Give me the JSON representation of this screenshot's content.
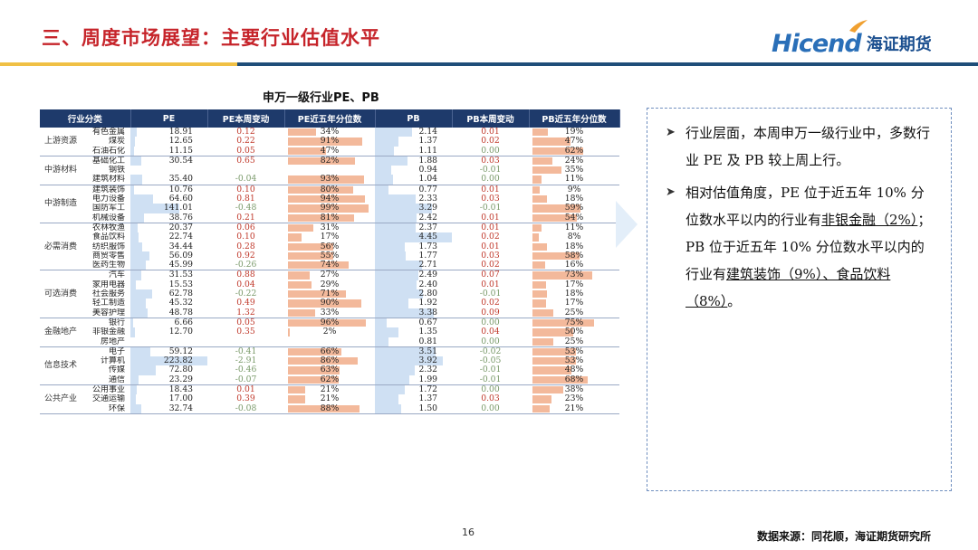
{
  "header": {
    "title": "三、周度市场展望：主要行业估值水平",
    "logo_en": "Hicend",
    "logo_zh": "海证期货"
  },
  "table": {
    "title": "申万一级行业PE、PB",
    "columns": [
      "行业分类",
      "",
      "PE",
      "PE本周变动",
      "PE近五年分位数",
      "PB",
      "PB本周变动",
      "PB近五年分位数"
    ],
    "groups": [
      {
        "name": "上游资源",
        "rows": [
          {
            "industry": "有色金属",
            "pe": "18.91",
            "pe_chg": "0.12",
            "pe_pct": "34%",
            "pb": "2.14",
            "pb_chg": "0.01",
            "pb_pct": "19%"
          },
          {
            "industry": "煤炭",
            "pe": "12.65",
            "pe_chg": "0.22",
            "pe_pct": "91%",
            "pb": "1.37",
            "pb_chg": "0.02",
            "pb_pct": "47%"
          },
          {
            "industry": "石油石化",
            "pe": "11.15",
            "pe_chg": "0.05",
            "pe_pct": "47%",
            "pb": "1.11",
            "pb_chg": "0.00",
            "pb_pct": "62%"
          }
        ]
      },
      {
        "name": "中游材料",
        "rows": [
          {
            "industry": "基础化工",
            "pe": "30.54",
            "pe_chg": "0.65",
            "pe_pct": "82%",
            "pb": "1.88",
            "pb_chg": "0.03",
            "pb_pct": "24%"
          },
          {
            "industry": "钢铁",
            "pe": "",
            "pe_chg": "",
            "pe_pct": "",
            "pb": "0.94",
            "pb_chg": "-0.01",
            "pb_pct": "35%"
          },
          {
            "industry": "建筑材料",
            "pe": "35.40",
            "pe_chg": "-0.04",
            "pe_pct": "93%",
            "pb": "1.04",
            "pb_chg": "0.00",
            "pb_pct": "11%"
          }
        ]
      },
      {
        "name": "中游制造",
        "rows": [
          {
            "industry": "建筑装饰",
            "pe": "10.76",
            "pe_chg": "0.10",
            "pe_pct": "80%",
            "pb": "0.77",
            "pb_chg": "0.01",
            "pb_pct": "9%"
          },
          {
            "industry": "电力设备",
            "pe": "64.60",
            "pe_chg": "0.81",
            "pe_pct": "94%",
            "pb": "2.33",
            "pb_chg": "0.03",
            "pb_pct": "18%"
          },
          {
            "industry": "国防军工",
            "pe": "141.01",
            "pe_chg": "-0.48",
            "pe_pct": "99%",
            "pb": "3.29",
            "pb_chg": "-0.01",
            "pb_pct": "59%"
          },
          {
            "industry": "机械设备",
            "pe": "38.76",
            "pe_chg": "0.21",
            "pe_pct": "81%",
            "pb": "2.42",
            "pb_chg": "0.01",
            "pb_pct": "54%"
          }
        ]
      },
      {
        "name": "必需消费",
        "rows": [
          {
            "industry": "农林牧渔",
            "pe": "20.37",
            "pe_chg": "0.06",
            "pe_pct": "31%",
            "pb": "2.37",
            "pb_chg": "0.01",
            "pb_pct": "11%"
          },
          {
            "industry": "食品饮料",
            "pe": "22.74",
            "pe_chg": "0.10",
            "pe_pct": "17%",
            "pb": "4.45",
            "pb_chg": "0.02",
            "pb_pct": "8%"
          },
          {
            "industry": "纺织服饰",
            "pe": "34.44",
            "pe_chg": "0.28",
            "pe_pct": "56%",
            "pb": "1.73",
            "pb_chg": "0.01",
            "pb_pct": "18%"
          },
          {
            "industry": "商贸零售",
            "pe": "56.09",
            "pe_chg": "0.92",
            "pe_pct": "55%",
            "pb": "1.77",
            "pb_chg": "0.03",
            "pb_pct": "58%"
          },
          {
            "industry": "医药生物",
            "pe": "45.99",
            "pe_chg": "-0.26",
            "pe_pct": "74%",
            "pb": "2.71",
            "pb_chg": "0.02",
            "pb_pct": "16%"
          }
        ]
      },
      {
        "name": "可选消费",
        "rows": [
          {
            "industry": "汽车",
            "pe": "31.53",
            "pe_chg": "0.88",
            "pe_pct": "27%",
            "pb": "2.49",
            "pb_chg": "0.07",
            "pb_pct": "73%"
          },
          {
            "industry": "家用电器",
            "pe": "15.53",
            "pe_chg": "0.04",
            "pe_pct": "29%",
            "pb": "2.40",
            "pb_chg": "0.01",
            "pb_pct": "17%"
          },
          {
            "industry": "社会服务",
            "pe": "62.78",
            "pe_chg": "-0.22",
            "pe_pct": "71%",
            "pb": "2.80",
            "pb_chg": "-0.01",
            "pb_pct": "18%"
          },
          {
            "industry": "轻工制造",
            "pe": "45.32",
            "pe_chg": "0.49",
            "pe_pct": "90%",
            "pb": "1.92",
            "pb_chg": "0.02",
            "pb_pct": "17%"
          },
          {
            "industry": "美容护理",
            "pe": "48.78",
            "pe_chg": "1.32",
            "pe_pct": "33%",
            "pb": "3.38",
            "pb_chg": "0.09",
            "pb_pct": "25%"
          }
        ]
      },
      {
        "name": "金融地产",
        "rows": [
          {
            "industry": "银行",
            "pe": "6.66",
            "pe_chg": "0.05",
            "pe_pct": "96%",
            "pb": "0.67",
            "pb_chg": "0.00",
            "pb_pct": "75%"
          },
          {
            "industry": "非银金融",
            "pe": "12.70",
            "pe_chg": "0.35",
            "pe_pct": "2%",
            "pb": "1.35",
            "pb_chg": "0.04",
            "pb_pct": "50%"
          },
          {
            "industry": "房地产",
            "pe": "",
            "pe_chg": "",
            "pe_pct": "",
            "pb": "0.81",
            "pb_chg": "0.00",
            "pb_pct": "25%"
          }
        ]
      },
      {
        "name": "信息技术",
        "rows": [
          {
            "industry": "电子",
            "pe": "59.12",
            "pe_chg": "-0.41",
            "pe_pct": "66%",
            "pb": "3.51",
            "pb_chg": "-0.02",
            "pb_pct": "53%"
          },
          {
            "industry": "计算机",
            "pe": "223.82",
            "pe_chg": "-2.91",
            "pe_pct": "86%",
            "pb": "3.92",
            "pb_chg": "-0.05",
            "pb_pct": "53%"
          },
          {
            "industry": "传媒",
            "pe": "72.80",
            "pe_chg": "-0.46",
            "pe_pct": "63%",
            "pb": "2.32",
            "pb_chg": "-0.01",
            "pb_pct": "48%"
          },
          {
            "industry": "通信",
            "pe": "23.29",
            "pe_chg": "-0.07",
            "pe_pct": "62%",
            "pb": "1.99",
            "pb_chg": "-0.01",
            "pb_pct": "68%"
          }
        ]
      },
      {
        "name": "公共产业",
        "rows": [
          {
            "industry": "公用事业",
            "pe": "18.43",
            "pe_chg": "0.01",
            "pe_pct": "21%",
            "pb": "1.72",
            "pb_chg": "0.00",
            "pb_pct": "38%"
          },
          {
            "industry": "交通运输",
            "pe": "17.00",
            "pe_chg": "0.39",
            "pe_pct": "21%",
            "pb": "1.37",
            "pb_chg": "0.03",
            "pb_pct": "23%"
          },
          {
            "industry": "环保",
            "pe": "32.74",
            "pe_chg": "-0.08",
            "pe_pct": "88%",
            "pb": "1.50",
            "pb_chg": "0.00",
            "pb_pct": "21%"
          }
        ]
      }
    ]
  },
  "notes": {
    "item1": "行业层面，本周申万一级行业中，多数行业 PE 及 PB 较上周上行。",
    "item2_a": "相对估值角度，PE 位于近五年 10% 分位数水平以内的行业有",
    "item2_b": "非银金融（2%）",
    "item2_c": "；PB 位于近五年 10% 分位数水平以内的行业有",
    "item2_d": "建筑装饰（9%）、食品饮料（8%）",
    "item2_e": "。"
  },
  "footer": {
    "page": "16",
    "source": "数据来源：同花顺，海证期货研究所"
  },
  "colors": {
    "title_red": "#c6242a",
    "header_navy": "#1e3a6b",
    "pct_bar": "#f3b99b",
    "pe_highlight": "#cfe0f3",
    "accent_gold": "#f0c045"
  }
}
